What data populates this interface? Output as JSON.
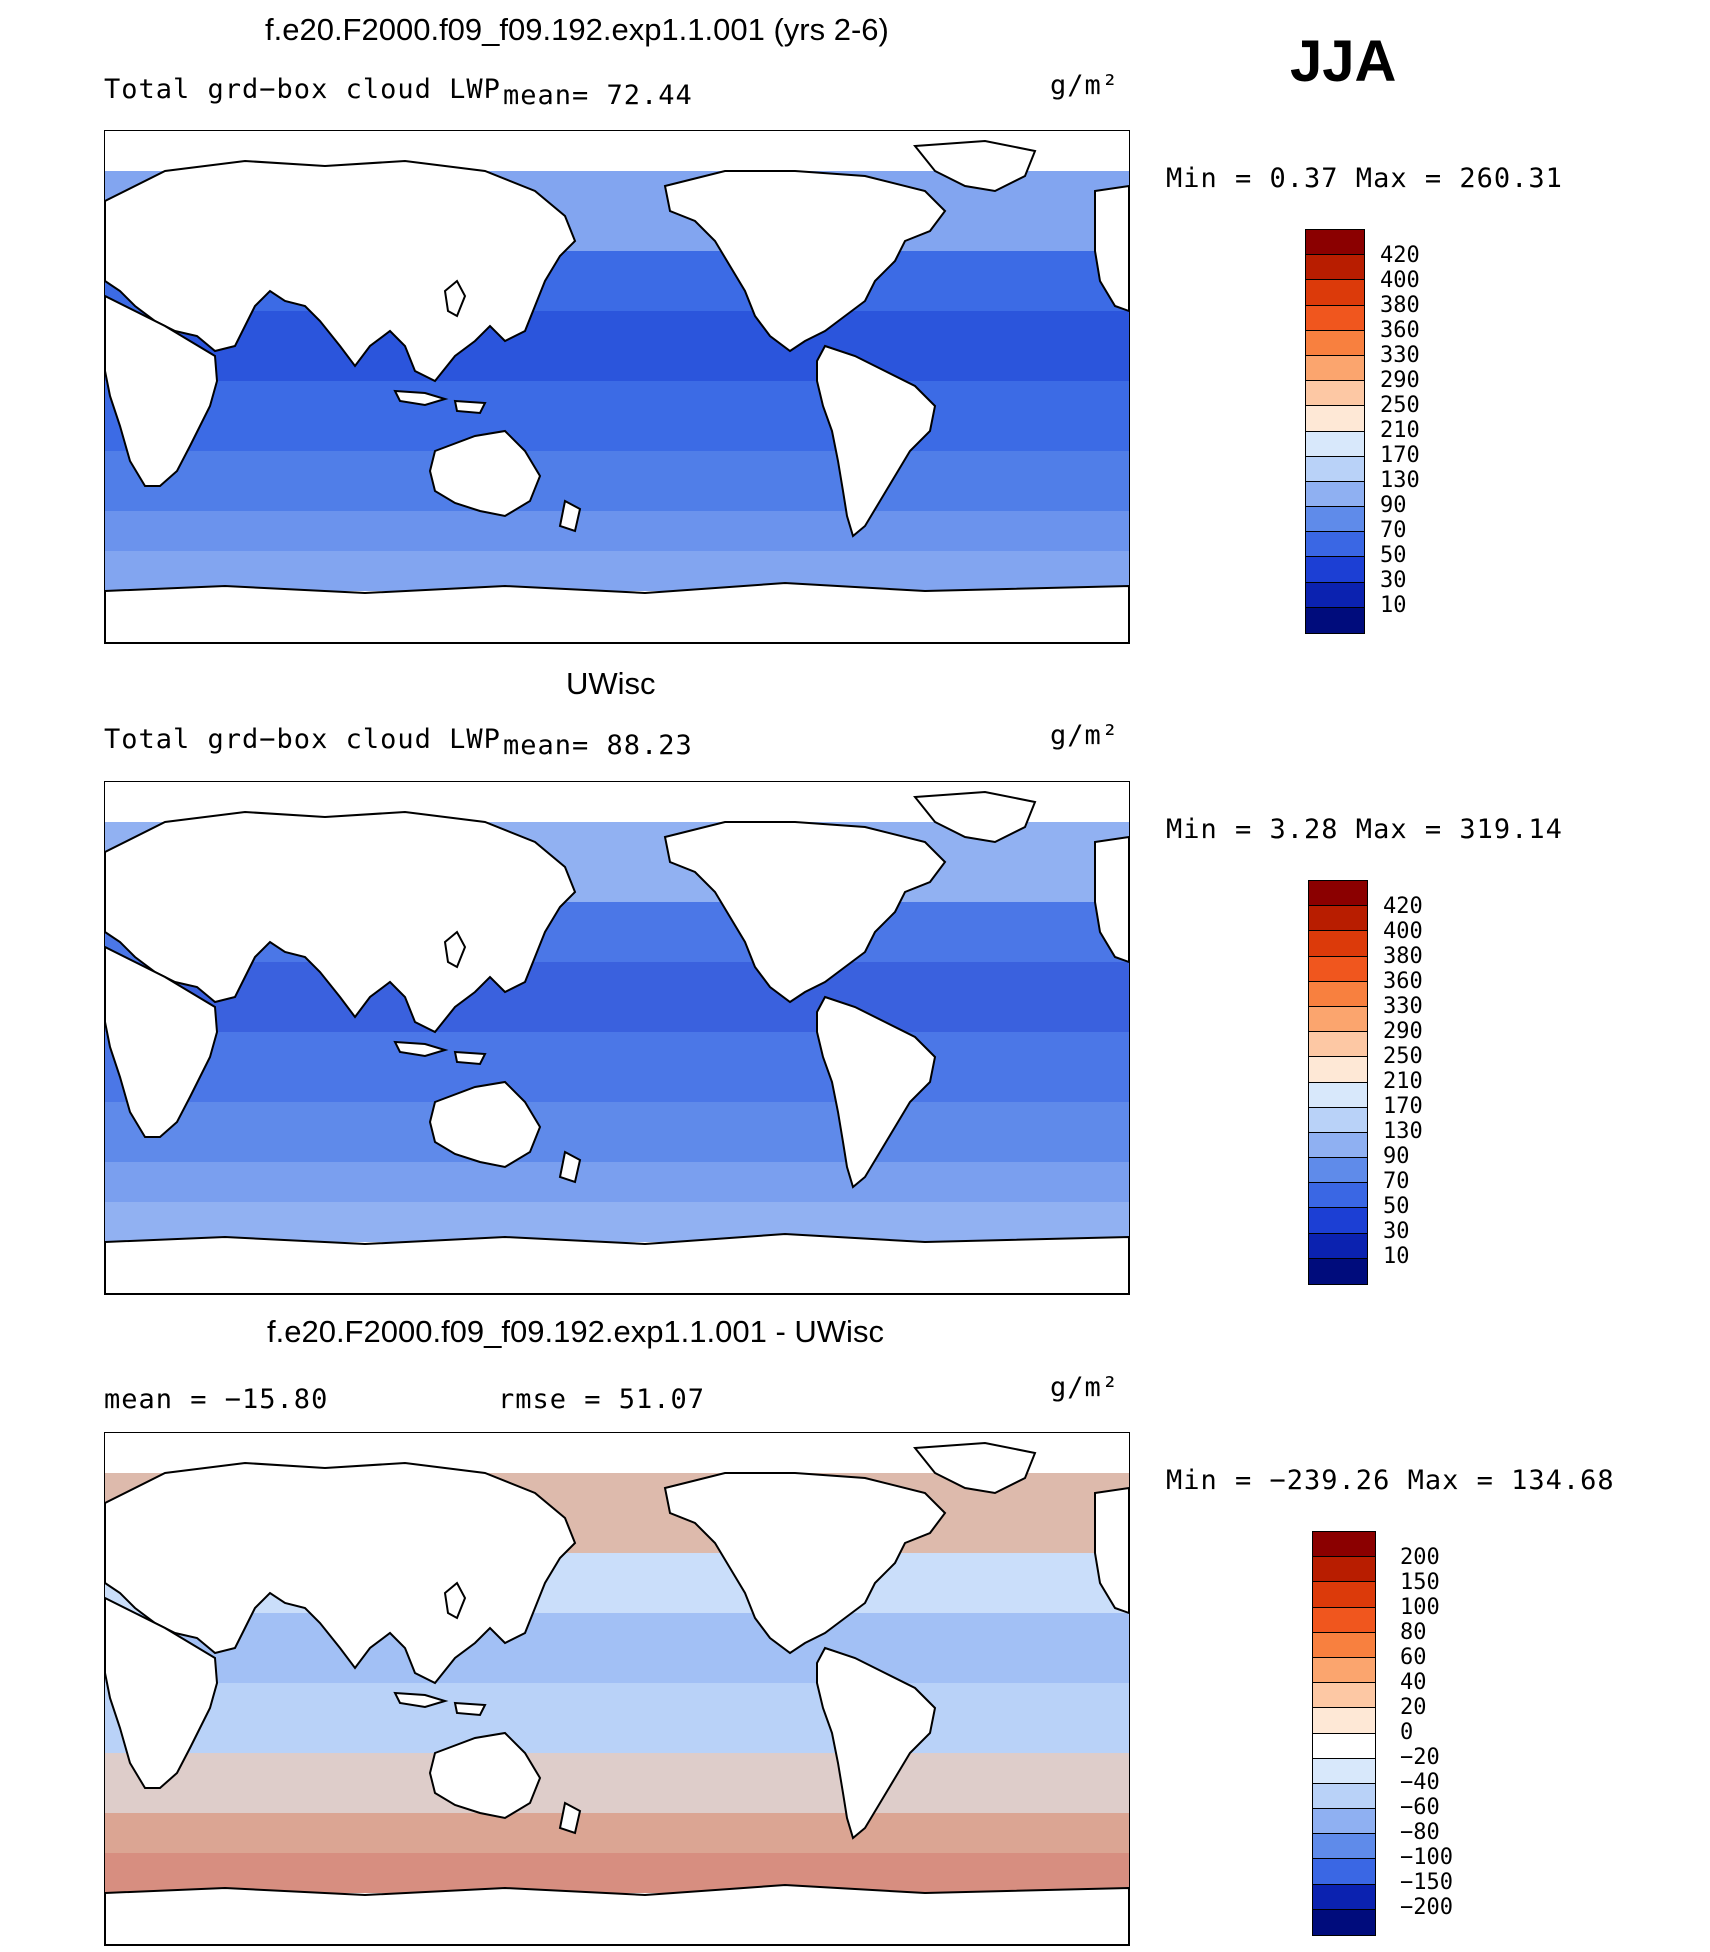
{
  "season": "JJA",
  "units_label": "g/m²",
  "panels": [
    {
      "title": "f.e20.F2000.f09_f09.192.exp1.1.001 (yrs 2-6)",
      "field_label": "Total grd−box cloud LWP",
      "stat1": "mean=  72.44",
      "stat2": "",
      "minmax": "Min =   0.37 Max = 260.31",
      "ocean_color": "#3f6fe6",
      "colorbar_labels": [
        "420",
        "400",
        "380",
        "360",
        "330",
        "290",
        "250",
        "210",
        "170",
        "130",
        "90",
        "70",
        "50",
        "30",
        "10"
      ],
      "colorbar_colors": [
        "#8b0000",
        "#b81d00",
        "#dc3a0a",
        "#f0561e",
        "#f8803f",
        "#fba56e",
        "#fdc8a4",
        "#fee8d6",
        "#d8e8fb",
        "#b9d2f8",
        "#8fb0f2",
        "#5f8bea",
        "#3a67e4",
        "#1c3fd4",
        "#0b22b0",
        "#000c7c"
      ]
    },
    {
      "title": "UWisc",
      "field_label": "Total grd−box cloud LWP",
      "stat1": "mean=  88.23",
      "stat2": "",
      "minmax": "Min =   3.28 Max = 319.14",
      "ocean_color": "#5f8bea",
      "colorbar_labels": [
        "420",
        "400",
        "380",
        "360",
        "330",
        "290",
        "250",
        "210",
        "170",
        "130",
        "90",
        "70",
        "50",
        "30",
        "10"
      ],
      "colorbar_colors": [
        "#8b0000",
        "#b81d00",
        "#dc3a0a",
        "#f0561e",
        "#f8803f",
        "#fba56e",
        "#fdc8a4",
        "#fee8d6",
        "#d8e8fb",
        "#b9d2f8",
        "#8fb0f2",
        "#5f8bea",
        "#3a67e4",
        "#1c3fd4",
        "#0b22b0",
        "#000c7c"
      ]
    },
    {
      "title": "f.e20.F2000.f09_f09.192.exp1.1.001 - UWisc",
      "field_label": "",
      "stat1": "mean = −15.80",
      "stat2": "rmse =  51.07",
      "minmax": "Min = −239.26 Max = 134.68",
      "ocean_color": "#b9d2f8",
      "colorbar_labels": [
        "200",
        "150",
        "100",
        "80",
        "60",
        "40",
        "20",
        "0",
        "−20",
        "−40",
        "−60",
        "−80",
        "−100",
        "−150",
        "−200"
      ],
      "colorbar_colors": [
        "#8b0000",
        "#b81d00",
        "#dc3a0a",
        "#f0561e",
        "#f8803f",
        "#fba56e",
        "#fdc8a4",
        "#fee8d6",
        "#ffffff",
        "#d8e8fb",
        "#b9d2f8",
        "#8fb0f2",
        "#5f8bea",
        "#3a67e4",
        "#0b22b0",
        "#000c7c"
      ]
    }
  ]
}
